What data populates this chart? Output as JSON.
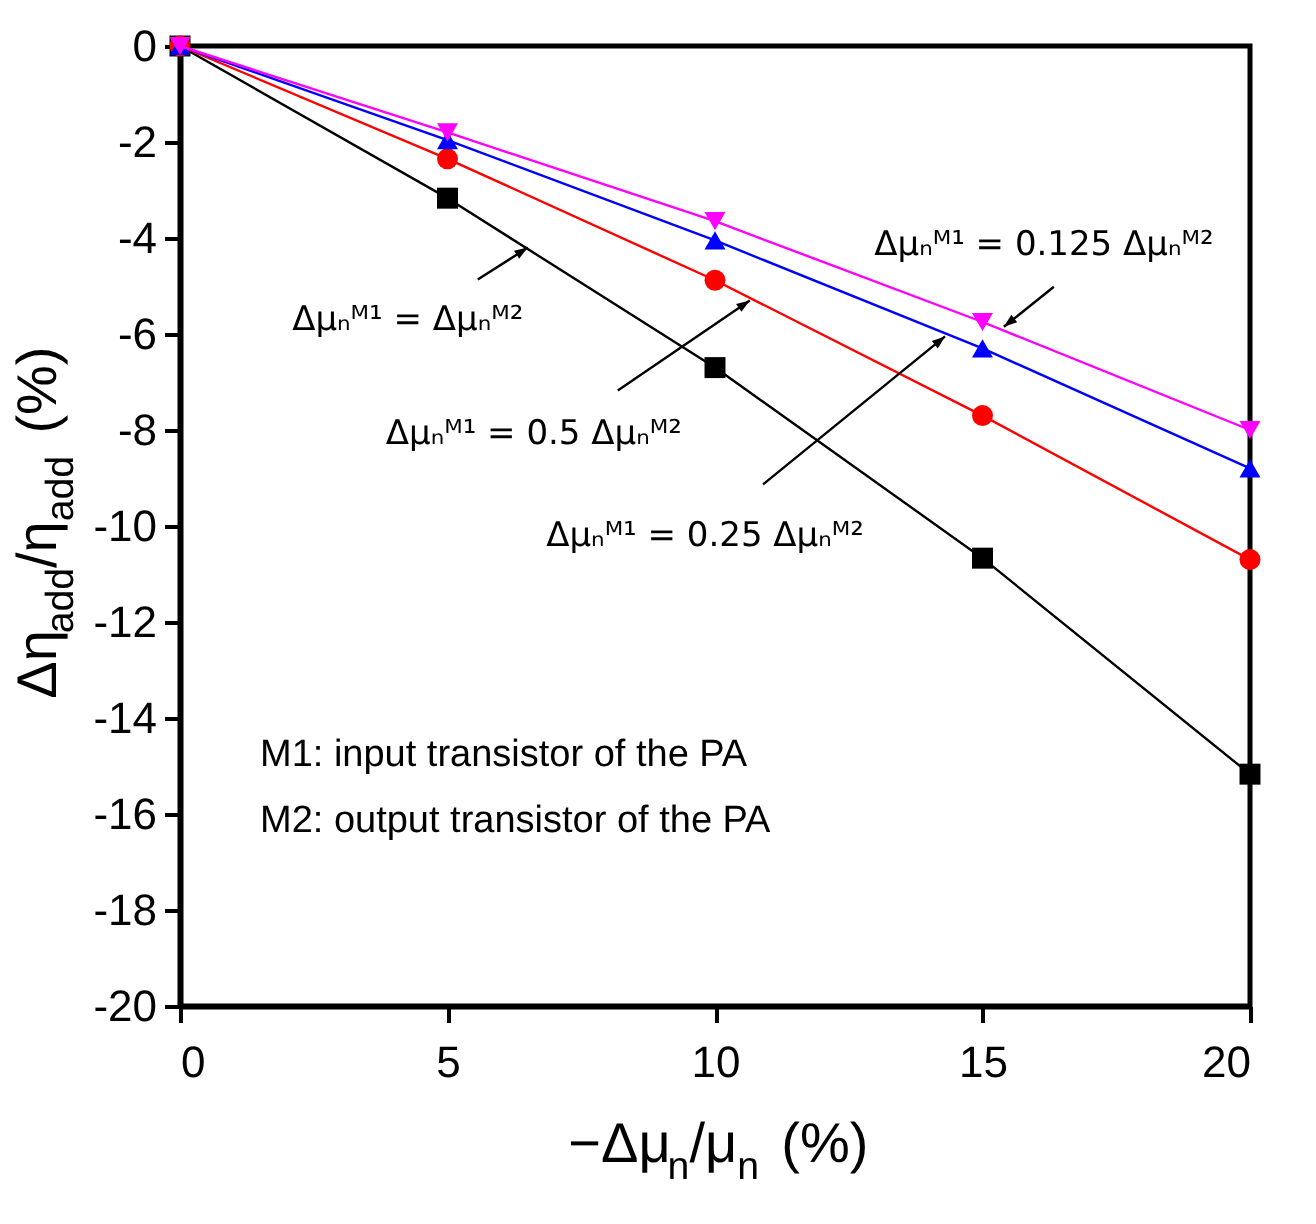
{
  "chart_data": {
    "type": "line",
    "xlabel": "−Δμ$_{n}$/μ$_{n}$ (%)",
    "ylabel": "Δη$_{add}$/η$_{add}$ (%)",
    "x": [
      0,
      5,
      10,
      15,
      20
    ],
    "series": [
      {
        "color": "#000000",
        "marker": "square",
        "values": [
          0,
          -3.17,
          -6.7,
          -10.67,
          -15.17
        ]
      },
      {
        "color": "#ff0000",
        "marker": "circle",
        "values": [
          0,
          -2.35,
          -4.88,
          -7.7,
          -10.7
        ]
      },
      {
        "color": "#0000ff",
        "marker": "triangle",
        "values": [
          0,
          -1.96,
          -4.05,
          -6.3,
          -8.8
        ]
      },
      {
        "color": "#ff00ff",
        "marker": "triangle-down",
        "values": [
          0,
          -1.8,
          -3.65,
          -5.75,
          -8.0
        ]
      }
    ],
    "xlim": [
      0,
      20
    ],
    "ylim": [
      -20,
      0
    ],
    "xticks": [
      0,
      5,
      10,
      15,
      20
    ],
    "yticks": [
      0,
      -2,
      -4,
      -6,
      -8,
      -10,
      -12,
      -14,
      -16,
      -18,
      -20
    ],
    "line_style": "solid",
    "annotations": [
      {
        "text": "Δμₙᴹ¹ = Δμₙᴹ²",
        "x": 6.5,
        "y": -4.2
      },
      {
        "text": "Δμₙᴹ¹ = 0.5 Δμₙᴹ²",
        "x": 10.65,
        "y": -5.3
      },
      {
        "text": "Δμₙᴹ¹ = 0.25 Δμₙᴹ²",
        "x": 14.3,
        "y": -6.05
      },
      {
        "text": "Δμₙᴹ¹ = 0.125 Δμₙᴹ²",
        "x": 15.4,
        "y": -5.85
      },
      "M1: input transistor of the PA",
      "M2: output transistor of the PA"
    ]
  }
}
